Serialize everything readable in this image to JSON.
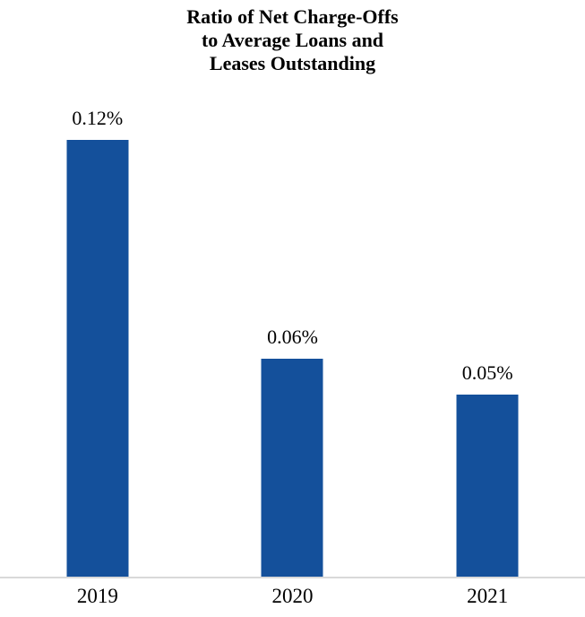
{
  "title": "Ratio of Net Charge-Offs\nto Average Loans and\nLeases Outstanding",
  "chart_data": {
    "type": "bar",
    "title": "Ratio of Net Charge-Offs to Average Loans and Leases Outstanding",
    "categories": [
      "2019",
      "2020",
      "2021"
    ],
    "values": [
      0.12,
      0.06,
      0.05
    ],
    "value_labels": [
      "0.12%",
      "0.06%",
      "0.05%"
    ],
    "xlabel": "",
    "ylabel": "",
    "ylim": [
      0,
      0.12
    ],
    "grid": false,
    "legend": false,
    "y_axis_visible": false,
    "bar_color": "#14509B",
    "axis_line_color": "#d9d9d9",
    "text_color": "#000000",
    "background_color": "#ffffff"
  }
}
